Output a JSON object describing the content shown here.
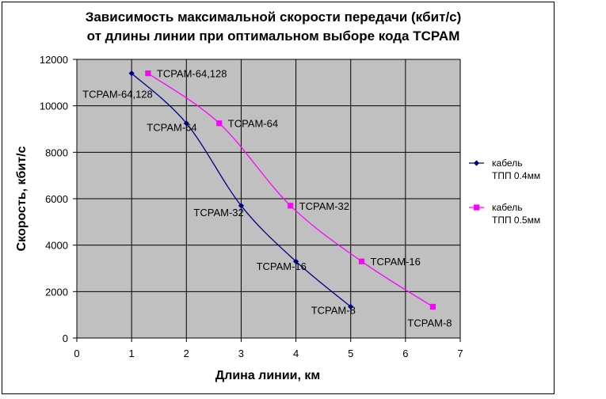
{
  "chart_data": {
    "type": "line",
    "title_lines": [
      "Зависимость максимальной скорости передачи (кбит/с)",
      "от длины линии при оптимальном выборе кода TCPAM"
    ],
    "xlabel": "Длина линии, км",
    "ylabel": "Скорость, кбит/с",
    "xlim": [
      0,
      7
    ],
    "ylim": [
      0,
      12000
    ],
    "xticks": [
      0,
      1,
      2,
      3,
      4,
      5,
      6,
      7
    ],
    "yticks": [
      0,
      2000,
      4000,
      6000,
      8000,
      10000,
      12000
    ],
    "grid": true,
    "plot_background": "#c0c0c0",
    "legend_position": "right",
    "series": [
      {
        "legend_lines": [
          "кабель",
          "ТПП 0.4мм"
        ],
        "color": "#000080",
        "marker": "diamond",
        "points": [
          {
            "x": 1,
            "y": 11400,
            "label": "TCPAM-64,128"
          },
          {
            "x": 2,
            "y": 9250,
            "label": "TCPAM-64"
          },
          {
            "x": 3,
            "y": 5700,
            "label": "TCPAM-32"
          },
          {
            "x": 4,
            "y": 3300,
            "label": "TCPAM-16"
          },
          {
            "x": 5,
            "y": 1350,
            "label": "TCPAM-8"
          }
        ]
      },
      {
        "legend_lines": [
          "кабель",
          "ТПП 0.5мм"
        ],
        "color": "#ff00ff",
        "marker": "square",
        "points": [
          {
            "x": 1.3,
            "y": 11400,
            "label": "TCPAM-64,128"
          },
          {
            "x": 2.6,
            "y": 9250,
            "label": "TCPAM-64"
          },
          {
            "x": 3.9,
            "y": 5700,
            "label": "TCPAM-32"
          },
          {
            "x": 5.2,
            "y": 3300,
            "label": "TCPAM-16"
          },
          {
            "x": 6.5,
            "y": 1350,
            "label": "TCPAM-8"
          }
        ]
      }
    ]
  }
}
